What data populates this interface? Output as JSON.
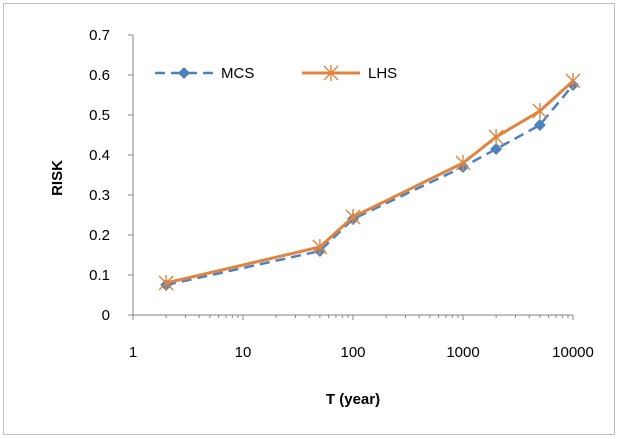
{
  "chart_data": {
    "type": "line",
    "x_scale": "log",
    "xlabel": "T (year)",
    "ylabel": "RISK",
    "xlim": [
      1,
      10000
    ],
    "ylim": [
      0,
      0.7
    ],
    "x_ticks": [
      "1",
      "10",
      "100",
      "1000",
      "10000"
    ],
    "y_ticks": [
      "0",
      "0.1",
      "0.2",
      "0.3",
      "0.4",
      "0.5",
      "0.6",
      "0.7"
    ],
    "grid": false,
    "legend_position": "top-left",
    "x": [
      2,
      50,
      100,
      1000,
      2000,
      5000,
      10000
    ],
    "series": [
      {
        "name": "MCS",
        "values": [
          0.075,
          0.16,
          0.24,
          0.37,
          0.415,
          0.475,
          0.575
        ],
        "color": "#4f81bd",
        "style": "dashed",
        "marker": "diamond"
      },
      {
        "name": "LHS",
        "values": [
          0.08,
          0.17,
          0.245,
          0.38,
          0.445,
          0.51,
          0.585
        ],
        "color": "#e0843f",
        "style": "solid",
        "marker": "star"
      }
    ]
  }
}
